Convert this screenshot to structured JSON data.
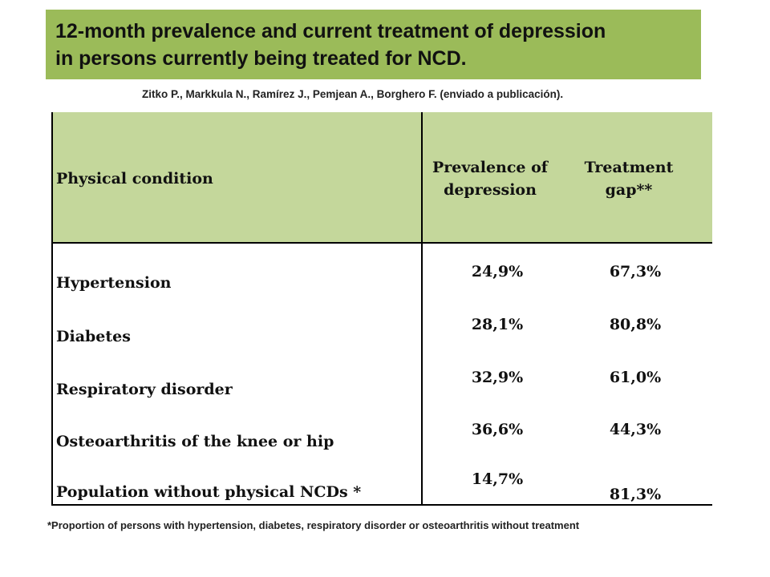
{
  "title": {
    "line1": "12-month prevalence and current treatment of depression",
    "line2": "in persons currently being treated for  NCD."
  },
  "citation": "Zitko P., Markkula N., Ramírez J., Pemjean A., Borghero F. (enviado a publicación).",
  "table": {
    "headers": {
      "condition": "Physical condition",
      "prevalence_line1": "Prevalence of",
      "prevalence_line2": "depression",
      "gap_line1": "Treatment",
      "gap_line2": "gap**"
    },
    "rows": [
      {
        "condition": "Hypertension",
        "prevalence": "24,9%",
        "gap": "67,3%"
      },
      {
        "condition": "Diabetes",
        "prevalence": "28,1%",
        "gap": "80,8%"
      },
      {
        "condition": "Respiratory disorder",
        "prevalence": "32,9%",
        "gap": "61,0%"
      },
      {
        "condition": "Osteoarthritis of the knee or hip",
        "prevalence": "36,6%",
        "gap": "44,3%"
      },
      {
        "condition": "Population without physical NCDs *",
        "prevalence": "14,7%",
        "gap": "81,3%"
      }
    ]
  },
  "footnote": "*Proportion of persons with hypertension, diabetes, respiratory disorder or osteoarthritis without treatment",
  "colors": {
    "title_bg": "#9bbb59",
    "header_bg": "#c4d79b"
  }
}
